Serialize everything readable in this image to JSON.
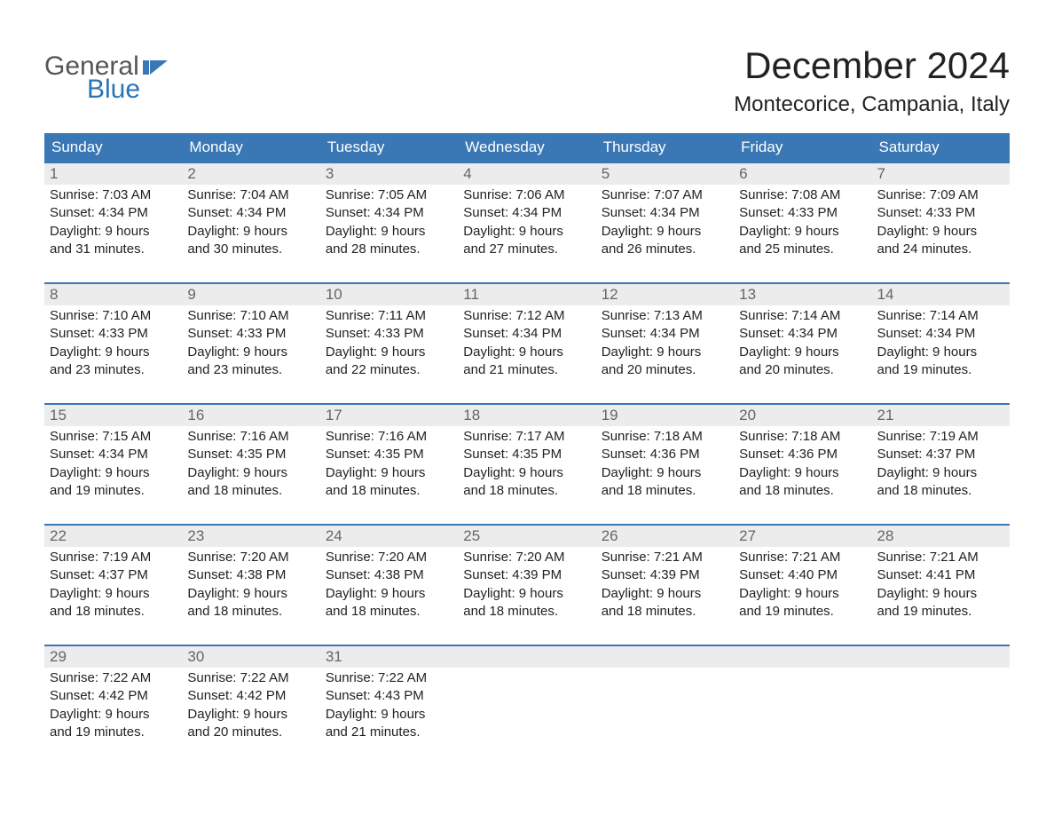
{
  "logo": {
    "line1": "General",
    "line2": "Blue"
  },
  "title": "December 2024",
  "location": "Montecorice, Campania, Italy",
  "style": {
    "header_bg": "#3a78b5",
    "header_fg": "#ffffff",
    "daynum_bg": "#ececec",
    "daynum_fg": "#666666",
    "border_top": "#3a78b5",
    "body_fg": "#222222",
    "page_bg": "#ffffff",
    "logo_general_color": "#555555",
    "logo_blue_color": "#2b74b8",
    "title_fontsize": 42,
    "location_fontsize": 24,
    "dayheader_fontsize": 17,
    "cell_fontsize": 15
  },
  "day_names": [
    "Sunday",
    "Monday",
    "Tuesday",
    "Wednesday",
    "Thursday",
    "Friday",
    "Saturday"
  ],
  "weeks": [
    [
      {
        "n": "1",
        "sr": "Sunrise: 7:03 AM",
        "ss": "Sunset: 4:34 PM",
        "d1": "Daylight: 9 hours",
        "d2": "and 31 minutes."
      },
      {
        "n": "2",
        "sr": "Sunrise: 7:04 AM",
        "ss": "Sunset: 4:34 PM",
        "d1": "Daylight: 9 hours",
        "d2": "and 30 minutes."
      },
      {
        "n": "3",
        "sr": "Sunrise: 7:05 AM",
        "ss": "Sunset: 4:34 PM",
        "d1": "Daylight: 9 hours",
        "d2": "and 28 minutes."
      },
      {
        "n": "4",
        "sr": "Sunrise: 7:06 AM",
        "ss": "Sunset: 4:34 PM",
        "d1": "Daylight: 9 hours",
        "d2": "and 27 minutes."
      },
      {
        "n": "5",
        "sr": "Sunrise: 7:07 AM",
        "ss": "Sunset: 4:34 PM",
        "d1": "Daylight: 9 hours",
        "d2": "and 26 minutes."
      },
      {
        "n": "6",
        "sr": "Sunrise: 7:08 AM",
        "ss": "Sunset: 4:33 PM",
        "d1": "Daylight: 9 hours",
        "d2": "and 25 minutes."
      },
      {
        "n": "7",
        "sr": "Sunrise: 7:09 AM",
        "ss": "Sunset: 4:33 PM",
        "d1": "Daylight: 9 hours",
        "d2": "and 24 minutes."
      }
    ],
    [
      {
        "n": "8",
        "sr": "Sunrise: 7:10 AM",
        "ss": "Sunset: 4:33 PM",
        "d1": "Daylight: 9 hours",
        "d2": "and 23 minutes."
      },
      {
        "n": "9",
        "sr": "Sunrise: 7:10 AM",
        "ss": "Sunset: 4:33 PM",
        "d1": "Daylight: 9 hours",
        "d2": "and 23 minutes."
      },
      {
        "n": "10",
        "sr": "Sunrise: 7:11 AM",
        "ss": "Sunset: 4:33 PM",
        "d1": "Daylight: 9 hours",
        "d2": "and 22 minutes."
      },
      {
        "n": "11",
        "sr": "Sunrise: 7:12 AM",
        "ss": "Sunset: 4:34 PM",
        "d1": "Daylight: 9 hours",
        "d2": "and 21 minutes."
      },
      {
        "n": "12",
        "sr": "Sunrise: 7:13 AM",
        "ss": "Sunset: 4:34 PM",
        "d1": "Daylight: 9 hours",
        "d2": "and 20 minutes."
      },
      {
        "n": "13",
        "sr": "Sunrise: 7:14 AM",
        "ss": "Sunset: 4:34 PM",
        "d1": "Daylight: 9 hours",
        "d2": "and 20 minutes."
      },
      {
        "n": "14",
        "sr": "Sunrise: 7:14 AM",
        "ss": "Sunset: 4:34 PM",
        "d1": "Daylight: 9 hours",
        "d2": "and 19 minutes."
      }
    ],
    [
      {
        "n": "15",
        "sr": "Sunrise: 7:15 AM",
        "ss": "Sunset: 4:34 PM",
        "d1": "Daylight: 9 hours",
        "d2": "and 19 minutes."
      },
      {
        "n": "16",
        "sr": "Sunrise: 7:16 AM",
        "ss": "Sunset: 4:35 PM",
        "d1": "Daylight: 9 hours",
        "d2": "and 18 minutes."
      },
      {
        "n": "17",
        "sr": "Sunrise: 7:16 AM",
        "ss": "Sunset: 4:35 PM",
        "d1": "Daylight: 9 hours",
        "d2": "and 18 minutes."
      },
      {
        "n": "18",
        "sr": "Sunrise: 7:17 AM",
        "ss": "Sunset: 4:35 PM",
        "d1": "Daylight: 9 hours",
        "d2": "and 18 minutes."
      },
      {
        "n": "19",
        "sr": "Sunrise: 7:18 AM",
        "ss": "Sunset: 4:36 PM",
        "d1": "Daylight: 9 hours",
        "d2": "and 18 minutes."
      },
      {
        "n": "20",
        "sr": "Sunrise: 7:18 AM",
        "ss": "Sunset: 4:36 PM",
        "d1": "Daylight: 9 hours",
        "d2": "and 18 minutes."
      },
      {
        "n": "21",
        "sr": "Sunrise: 7:19 AM",
        "ss": "Sunset: 4:37 PM",
        "d1": "Daylight: 9 hours",
        "d2": "and 18 minutes."
      }
    ],
    [
      {
        "n": "22",
        "sr": "Sunrise: 7:19 AM",
        "ss": "Sunset: 4:37 PM",
        "d1": "Daylight: 9 hours",
        "d2": "and 18 minutes."
      },
      {
        "n": "23",
        "sr": "Sunrise: 7:20 AM",
        "ss": "Sunset: 4:38 PM",
        "d1": "Daylight: 9 hours",
        "d2": "and 18 minutes."
      },
      {
        "n": "24",
        "sr": "Sunrise: 7:20 AM",
        "ss": "Sunset: 4:38 PM",
        "d1": "Daylight: 9 hours",
        "d2": "and 18 minutes."
      },
      {
        "n": "25",
        "sr": "Sunrise: 7:20 AM",
        "ss": "Sunset: 4:39 PM",
        "d1": "Daylight: 9 hours",
        "d2": "and 18 minutes."
      },
      {
        "n": "26",
        "sr": "Sunrise: 7:21 AM",
        "ss": "Sunset: 4:39 PM",
        "d1": "Daylight: 9 hours",
        "d2": "and 18 minutes."
      },
      {
        "n": "27",
        "sr": "Sunrise: 7:21 AM",
        "ss": "Sunset: 4:40 PM",
        "d1": "Daylight: 9 hours",
        "d2": "and 19 minutes."
      },
      {
        "n": "28",
        "sr": "Sunrise: 7:21 AM",
        "ss": "Sunset: 4:41 PM",
        "d1": "Daylight: 9 hours",
        "d2": "and 19 minutes."
      }
    ],
    [
      {
        "n": "29",
        "sr": "Sunrise: 7:22 AM",
        "ss": "Sunset: 4:42 PM",
        "d1": "Daylight: 9 hours",
        "d2": "and 19 minutes."
      },
      {
        "n": "30",
        "sr": "Sunrise: 7:22 AM",
        "ss": "Sunset: 4:42 PM",
        "d1": "Daylight: 9 hours",
        "d2": "and 20 minutes."
      },
      {
        "n": "31",
        "sr": "Sunrise: 7:22 AM",
        "ss": "Sunset: 4:43 PM",
        "d1": "Daylight: 9 hours",
        "d2": "and 21 minutes."
      },
      {
        "blank": true
      },
      {
        "blank": true
      },
      {
        "blank": true
      },
      {
        "blank": true
      }
    ]
  ]
}
